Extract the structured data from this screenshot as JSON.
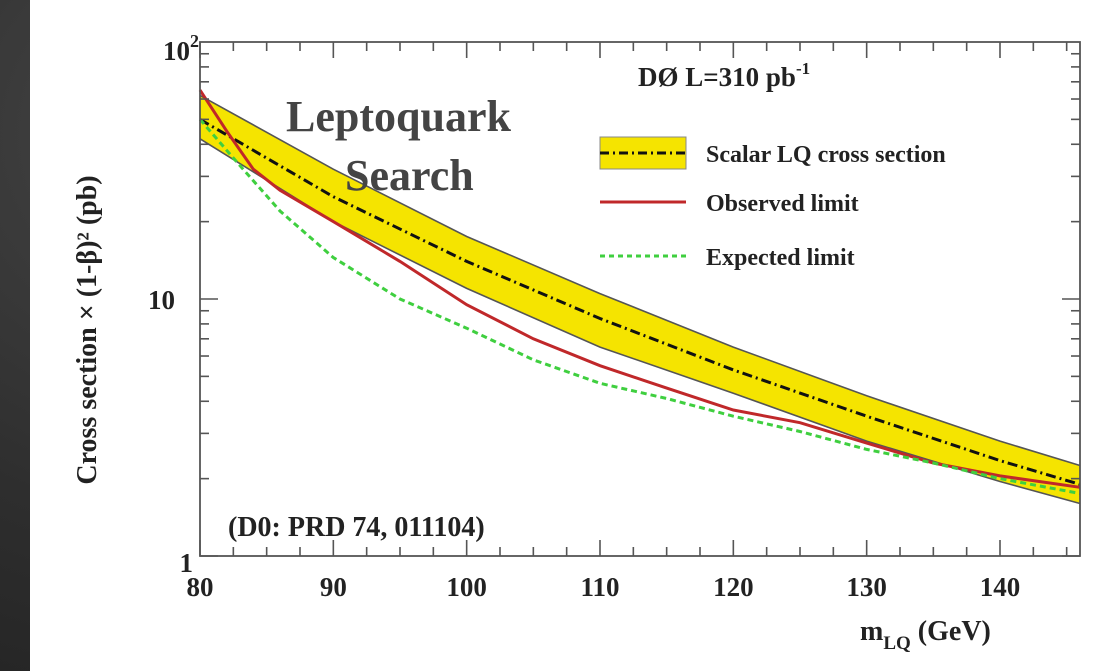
{
  "chart_data": {
    "type": "line",
    "title": "Leptoquark Search",
    "title_lines": [
      "Leptoquark",
      "Search"
    ],
    "experiment_label": "DØ  L=310 pb",
    "experiment_sup": "-1",
    "reference": "(D0: PRD 74, 011104)",
    "xlabel_main": "m",
    "xlabel_sub": "LQ",
    "xlabel_unit": " (GeV)",
    "ylabel": "Cross section × (1-β)² (pb)",
    "xlim": [
      80,
      146
    ],
    "ylim": [
      1,
      100
    ],
    "yscale": "log",
    "x_ticks": [
      "80",
      "90",
      "100",
      "110",
      "120",
      "130",
      "140"
    ],
    "y_ticks": [
      {
        "value": 1,
        "label": "1"
      },
      {
        "value": 10,
        "label": "10"
      },
      {
        "value": 100,
        "label": "10",
        "exp": "2"
      }
    ],
    "legend_position": "top-right",
    "band": {
      "name": "Scalar LQ cross section",
      "color": "#f5e400",
      "x": [
        80,
        90,
        100,
        110,
        120,
        130,
        140,
        146
      ],
      "upper": [
        62,
        32,
        17.5,
        10.5,
        6.5,
        4.2,
        2.8,
        2.25
      ],
      "lower": [
        42,
        20,
        11,
        6.5,
        4.3,
        2.8,
        1.95,
        1.6
      ]
    },
    "series": [
      {
        "name": "Scalar LQ cross section",
        "style": "dash-dot",
        "color": "#111111",
        "x": [
          80,
          90,
          100,
          110,
          120,
          130,
          140,
          146
        ],
        "values": [
          50,
          25,
          14,
          8.4,
          5.3,
          3.5,
          2.35,
          1.9
        ]
      },
      {
        "name": "Observed limit",
        "style": "solid",
        "color": "#c0282a",
        "x": [
          80,
          82,
          84,
          86,
          90,
          95,
          100,
          105,
          110,
          115,
          120,
          125,
          130,
          135,
          140,
          146
        ],
        "values": [
          65,
          45,
          32,
          26.5,
          20,
          14,
          9.5,
          7.0,
          5.5,
          4.5,
          3.7,
          3.3,
          2.75,
          2.3,
          2.05,
          1.85
        ]
      },
      {
        "name": "Expected limit",
        "style": "dashed",
        "color": "#3fcf3f",
        "x": [
          80,
          83,
          86,
          90,
          95,
          100,
          105,
          110,
          115,
          120,
          125,
          130,
          135,
          140,
          146
        ],
        "values": [
          50,
          33,
          22,
          14.5,
          10,
          7.7,
          5.8,
          4.7,
          4.1,
          3.5,
          3.05,
          2.6,
          2.3,
          2.0,
          1.75
        ]
      }
    ]
  }
}
